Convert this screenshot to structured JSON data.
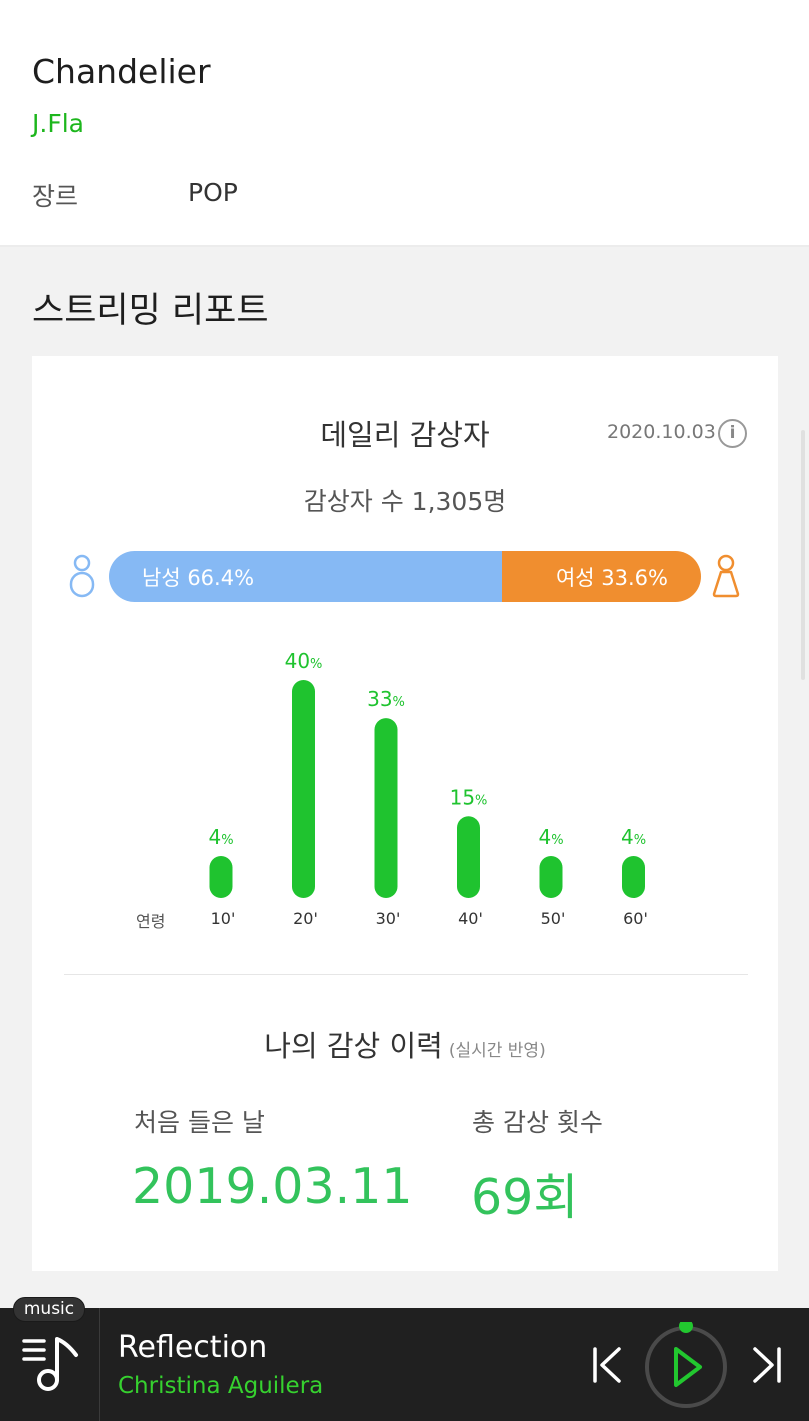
{
  "song": {
    "title": "Chandelier",
    "artist": "J.Fla",
    "genre_label": "장르",
    "genre_value": "POP"
  },
  "section_title": "스트리밍 리포트",
  "daily": {
    "title": "데일리 감상자",
    "date": "2020.10.03",
    "info_icon": "i",
    "listener_count": "감상자 수 1,305명",
    "male_label": "남성 66.4%",
    "female_label": "여성 33.6%",
    "colors": {
      "male": "#86b9f4",
      "female": "#f08e2f",
      "bar": "#1fc32f",
      "bar_text": "#1fc32f"
    }
  },
  "chart_data": {
    "type": "bar",
    "axis_label": "연령",
    "categories": [
      "10'",
      "20'",
      "30'",
      "40'",
      "50'",
      "60'"
    ],
    "values": [
      4,
      40,
      33,
      15,
      4,
      4
    ],
    "unit": "%"
  },
  "history": {
    "title": "나의 감상 이력",
    "subtitle": "(실시간 반영)",
    "first_listened_label": "처음 들은 날",
    "first_listened_value": "2019.03.11",
    "total_plays_label": "총 감상 횟수",
    "total_plays_value": "69회"
  },
  "player": {
    "badge": "music",
    "track_title": "Reflection",
    "track_artist": "Christina Aguilera",
    "icons": [
      "playlist-icon",
      "previous-icon",
      "play-icon",
      "next-icon"
    ]
  }
}
